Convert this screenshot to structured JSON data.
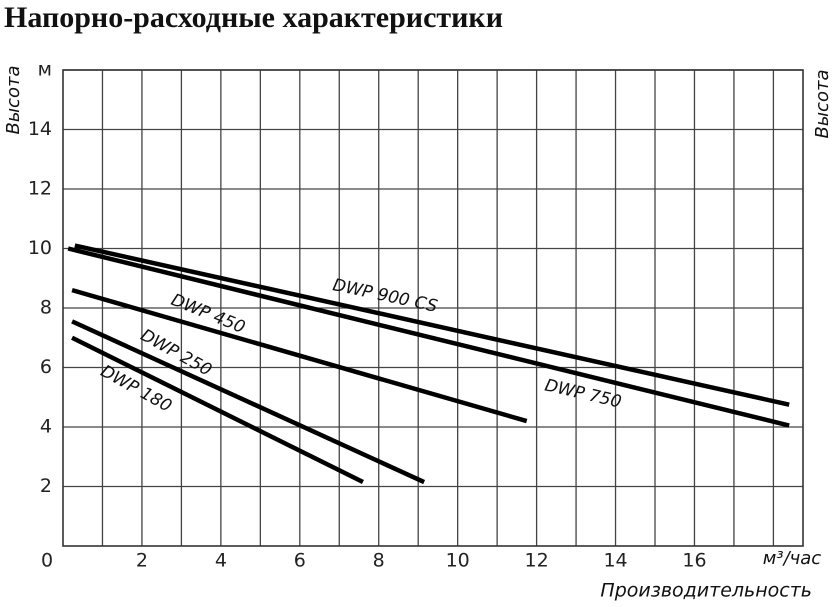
{
  "chart_data": {
    "type": "line",
    "title": "Напорно-расходные характеристики",
    "y_label": "Высота",
    "y2_label": "Высота",
    "x_label": "Производительность",
    "x_unit": "м³/час",
    "xlim": [
      0,
      18.75
    ],
    "ylim": [
      0,
      16
    ],
    "xticks": [
      0,
      2,
      4,
      6,
      8,
      10,
      12,
      14,
      16
    ],
    "yticks": [
      2,
      4,
      6,
      8,
      10,
      12,
      14,
      {
        "value": 16,
        "label": "м"
      }
    ],
    "xgrid": [
      1,
      2,
      3,
      4,
      5,
      6,
      7,
      8,
      9,
      10,
      11,
      12,
      13,
      14,
      15,
      16,
      17,
      18
    ],
    "grid": true,
    "series": [
      {
        "name": "DWP 900 CS",
        "color": "#000000",
        "x": [
          0.3,
          18.4
        ],
        "values": [
          10.1,
          4.75
        ]
      },
      {
        "name": "DWP 750",
        "color": "#000000",
        "x": [
          0.13,
          18.4
        ],
        "values": [
          10.0,
          4.05
        ]
      },
      {
        "name": "DWP 450",
        "color": "#000000",
        "x": [
          0.23,
          11.75
        ],
        "values": [
          8.6,
          4.2
        ]
      },
      {
        "name": "DWP 250",
        "color": "#000000",
        "x": [
          0.23,
          9.15
        ],
        "values": [
          7.55,
          2.15
        ]
      },
      {
        "name": "DWP 180",
        "color": "#000000",
        "x": [
          0.23,
          7.6
        ],
        "values": [
          7.0,
          2.15
        ]
      }
    ]
  }
}
